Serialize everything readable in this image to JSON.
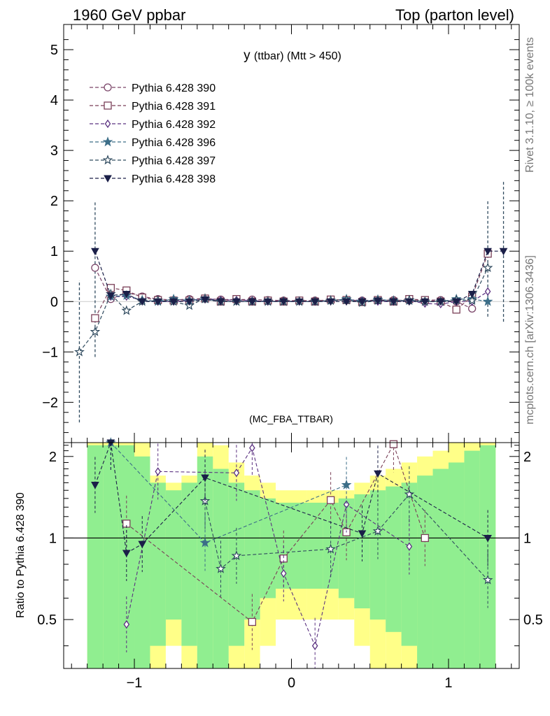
{
  "header": {
    "left": "1960 GeV ppbar",
    "right": "Top (parton level)"
  },
  "side_labels": {
    "rivet": "Rivet 3.1.10, ≥ 100k events",
    "mcplots": "mcplots.cern.ch [arXiv:1306.3436]"
  },
  "chart_data": [
    {
      "type": "line",
      "title_main": "y",
      "title_sub": "(ttbar) (Mtt > 450)",
      "watermark": "(MC_FBA_TTBAR)",
      "xlim": [
        -1.45,
        1.45
      ],
      "ylim": [
        -2.8,
        5.5
      ],
      "x_ticks": [
        "−1",
        "0",
        "1"
      ],
      "y_ticks": [
        "−2",
        "−1",
        "0",
        "1",
        "2",
        "3",
        "4",
        "5"
      ],
      "legend_position": "top-left",
      "x": [
        -1.35,
        -1.25,
        -1.15,
        -1.05,
        -0.95,
        -0.85,
        -0.75,
        -0.65,
        -0.55,
        -0.45,
        -0.35,
        -0.25,
        -0.15,
        -0.05,
        0.05,
        0.15,
        0.25,
        0.35,
        0.45,
        0.55,
        0.65,
        0.75,
        0.85,
        0.95,
        1.05,
        1.15,
        1.25,
        1.35
      ],
      "series": [
        {
          "name": "Pythia 6.428 390",
          "color": "#7a4468",
          "marker": "circle-open",
          "values": [
            null,
            0.67,
            0.05,
            0.18,
            0.1,
            0.05,
            0.03,
            0.05,
            0.06,
            0.04,
            0.04,
            0.04,
            0.03,
            0.02,
            0.02,
            0.02,
            0.03,
            0.03,
            0.02,
            0.03,
            0.03,
            0.02,
            0.03,
            0.03,
            0.0,
            -0.14,
            null,
            null
          ]
        },
        {
          "name": "Pythia 6.428 391",
          "color": "#7a3f57",
          "marker": "square-open",
          "values": [
            null,
            -0.33,
            0.27,
            0.22,
            0.08,
            0.03,
            0.02,
            0.02,
            0.06,
            0.0,
            0.05,
            0.0,
            0.02,
            0.0,
            0.02,
            0.0,
            0.04,
            0.03,
            -0.01,
            0.03,
            0.0,
            0.05,
            0.03,
            0.0,
            -0.16,
            0.1,
            0.95,
            null
          ]
        },
        {
          "name": "Pythia 6.428 392",
          "color": "#5a3080",
          "marker": "diamond-open",
          "values": [
            null,
            null,
            0.1,
            0.1,
            0.03,
            0.0,
            0.0,
            0.02,
            0.06,
            0.03,
            0.03,
            0.02,
            0.0,
            0.01,
            0.0,
            0.0,
            0.01,
            0.04,
            0.02,
            0.0,
            0.0,
            0.02,
            -0.04,
            -0.05,
            0.0,
            0.0,
            0.2,
            null
          ]
        },
        {
          "name": "Pythia 6.428 396",
          "color": "#3c6e88",
          "marker": "star",
          "values": [
            null,
            null,
            0.1,
            0.12,
            0.03,
            0.0,
            0.05,
            0.02,
            0.05,
            0.0,
            0.0,
            0.0,
            0.0,
            0.0,
            0.0,
            0.0,
            0.02,
            0.05,
            0.0,
            0.04,
            0.02,
            0.02,
            0.0,
            0.0,
            0.05,
            0.05,
            0.0,
            null
          ]
        },
        {
          "name": "Pythia 6.428 397",
          "color": "#2f4a5e",
          "marker": "star-open",
          "values": [
            -1.0,
            -0.6,
            0.15,
            -0.18,
            0.0,
            0.02,
            0.0,
            -0.08,
            0.06,
            0.0,
            0.0,
            0.0,
            0.0,
            0.0,
            0.0,
            0.0,
            0.02,
            0.03,
            -0.02,
            0.02,
            0.0,
            0.03,
            0.0,
            0.0,
            0.03,
            0.02,
            0.67,
            null
          ]
        },
        {
          "name": "Pythia 6.428 398",
          "color": "#1b1f48",
          "marker": "triangle-down",
          "values": [
            null,
            1.0,
            0.12,
            0.15,
            0.0,
            0.0,
            0.0,
            0.0,
            0.04,
            0.0,
            0.0,
            0.0,
            0.0,
            0.0,
            0.0,
            0.0,
            0.0,
            0.0,
            0.0,
            0.02,
            0.0,
            0.0,
            0.0,
            0.0,
            0.0,
            0.15,
            1.0,
            1.0
          ]
        }
      ],
      "error_bars": [
        {
          "x": -1.35,
          "low": -2.4,
          "high": 0.42
        },
        {
          "x": -1.25,
          "low": -1.1,
          "high": 2.0
        },
        {
          "x": 1.25,
          "low": -0.3,
          "high": 2.0
        },
        {
          "x": 1.35,
          "low": -0.4,
          "high": 2.4
        }
      ]
    },
    {
      "type": "line",
      "ylabel": "Ratio to Pythia 6.428 390",
      "xlim": [
        -1.45,
        1.45
      ],
      "ylim": [
        0.33,
        2.25
      ],
      "y_ticks": [
        "0.5",
        "1",
        "2"
      ],
      "x_ticks": [
        "−1",
        "0",
        "1"
      ],
      "band_yellow_half_width": [
        null,
        2.0,
        2.0,
        2.0,
        1.5,
        0.7,
        0.6,
        0.7,
        1.9,
        1.2,
        0.9,
        0.7,
        0.6,
        0.5,
        0.5,
        0.5,
        0.5,
        0.5,
        0.6,
        0.7,
        0.8,
        0.9,
        1.0,
        1.1,
        1.3,
        1.5,
        1.9,
        null
      ],
      "band_green_half_width": [
        null,
        1.2,
        1.2,
        1.2,
        1.0,
        0.6,
        0.5,
        0.6,
        1.0,
        0.8,
        0.6,
        0.5,
        0.4,
        0.35,
        0.35,
        0.35,
        0.35,
        0.4,
        0.45,
        0.5,
        0.55,
        0.6,
        0.7,
        0.8,
        0.9,
        1.1,
        1.2,
        null
      ],
      "ratio_series": [
        {
          "name": "Pythia 6.428 391",
          "color": "#7a3f57",
          "marker": "square-open",
          "values": [
            null,
            null,
            null,
            1.13,
            null,
            null,
            null,
            null,
            null,
            null,
            null,
            0.49,
            null,
            0.84,
            null,
            null,
            1.38,
            1.05,
            null,
            null,
            2.22,
            null,
            1.0,
            null,
            null,
            null,
            null,
            null
          ]
        },
        {
          "name": "Pythia 6.428 392",
          "color": "#5a3080",
          "marker": "diamond-open",
          "values": [
            null,
            null,
            null,
            0.48,
            null,
            1.76,
            null,
            null,
            null,
            null,
            1.74,
            2.15,
            null,
            0.74,
            null,
            0.4,
            null,
            1.33,
            null,
            null,
            null,
            0.93,
            null,
            null,
            null,
            null,
            null,
            null
          ]
        },
        {
          "name": "Pythia 6.428 396",
          "color": "#3c6e88",
          "marker": "star",
          "values": [
            null,
            null,
            2.25,
            null,
            null,
            null,
            null,
            null,
            0.96,
            null,
            null,
            null,
            null,
            null,
            null,
            null,
            null,
            1.57,
            null,
            null,
            null,
            null,
            null,
            null,
            null,
            null,
            null,
            null
          ]
        },
        {
          "name": "Pythia 6.428 397",
          "color": "#2f4a5e",
          "marker": "star-open",
          "values": [
            null,
            null,
            null,
            null,
            null,
            null,
            null,
            null,
            1.37,
            0.77,
            0.86,
            null,
            null,
            null,
            null,
            null,
            0.91,
            null,
            null,
            1.06,
            null,
            1.45,
            null,
            null,
            null,
            null,
            0.7,
            null
          ]
        },
        {
          "name": "Pythia 6.428 398",
          "color": "#1b1f48",
          "marker": "triangle-down",
          "values": [
            null,
            1.57,
            2.25,
            0.88,
            0.95,
            null,
            null,
            null,
            1.67,
            null,
            null,
            null,
            null,
            null,
            null,
            null,
            null,
            null,
            1.04,
            1.73,
            null,
            null,
            null,
            null,
            null,
            null,
            1.0,
            null
          ]
        }
      ]
    }
  ]
}
